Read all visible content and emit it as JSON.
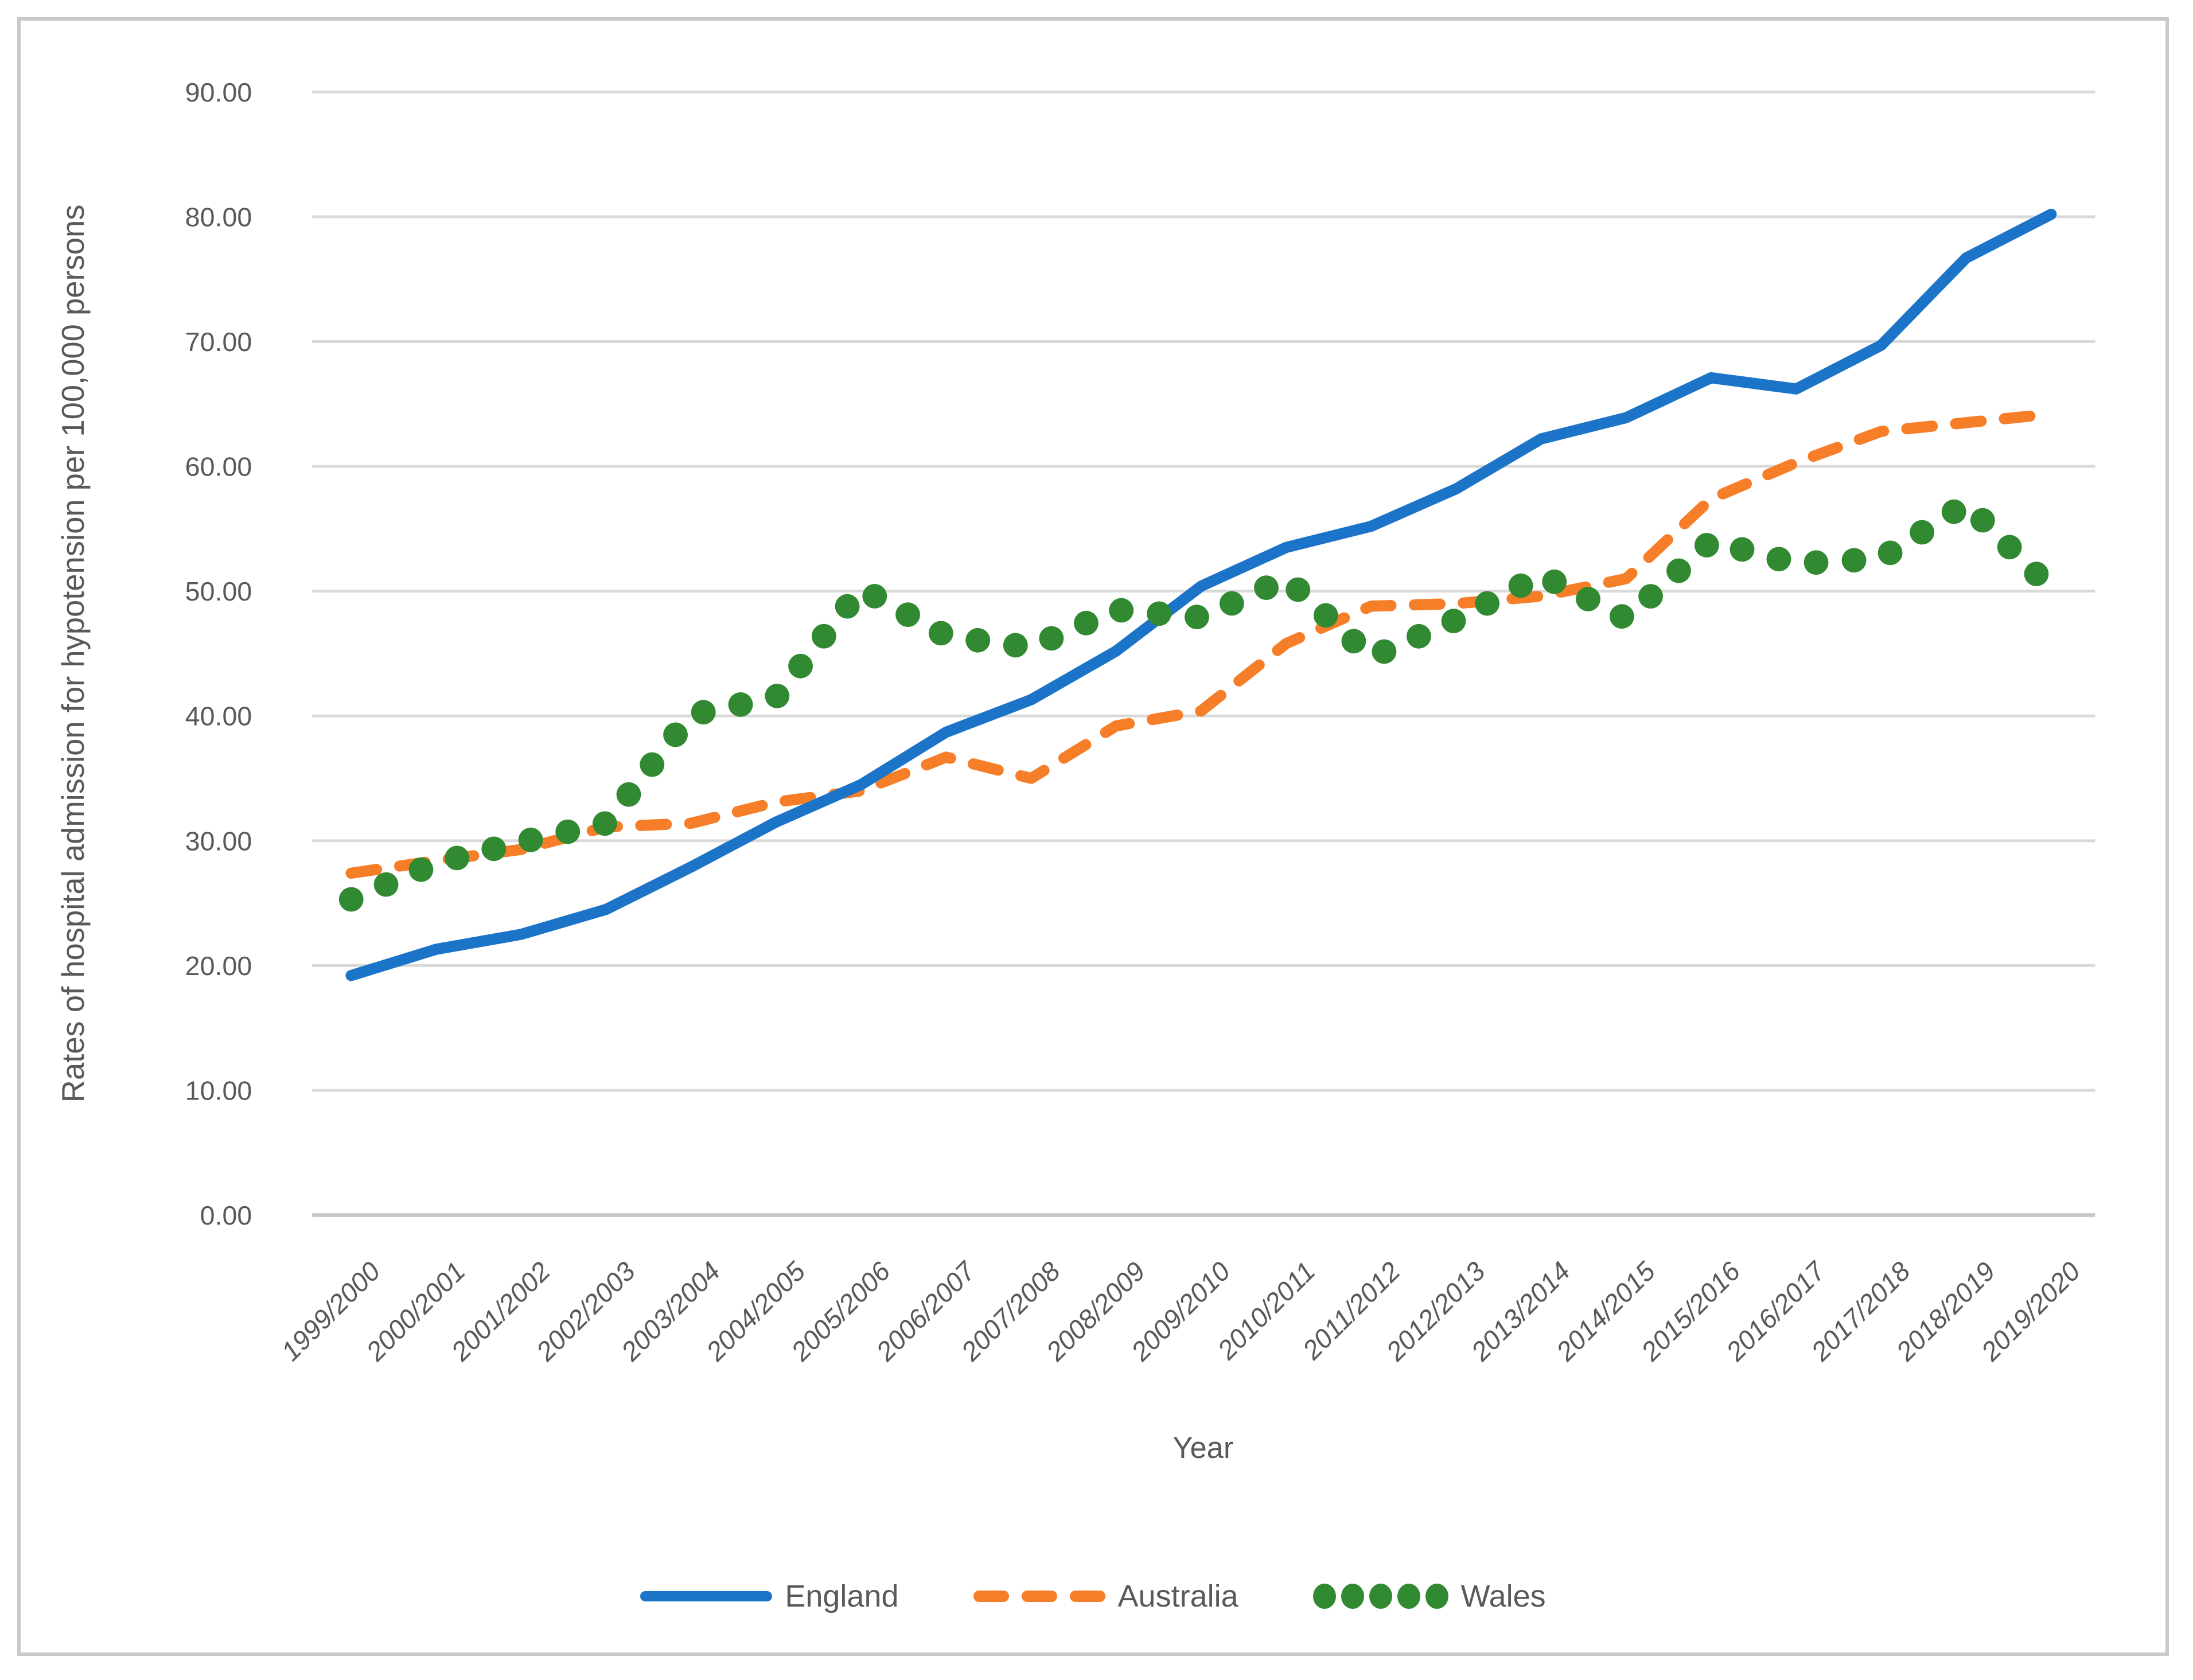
{
  "frame": {
    "border_color": "#c9c9c9",
    "background_color": "#ffffff"
  },
  "chart_data": {
    "type": "line",
    "title": "",
    "xlabel": "Year",
    "ylabel": "Rates of hospital admission for hypotension per 100,000 persons",
    "ylim": [
      0,
      90
    ],
    "ytick_step": 10,
    "ytick_decimals": 2,
    "grid": "horizontal-on",
    "gridline_color": "#d9d9d9",
    "axis_line_color": "#c8c8c8",
    "tick_label_color": "#595959",
    "legend_position": "bottom-center",
    "categories": [
      "1999/2000",
      "2000/2001",
      "2001/2002",
      "2002/2003",
      "2003/2004",
      "2004/2005",
      "2005/2006",
      "2006/2007",
      "2007/2008",
      "2008/2009",
      "2009/2010",
      "2010/2011",
      "2011/2012",
      "2012/2013",
      "2013/2014",
      "2014/2015",
      "2015/2016",
      "2016/2017",
      "2017/2018",
      "2018/2019",
      "2019/2020"
    ],
    "series": [
      {
        "name": "England",
        "color": "#1c74c9",
        "line_style": "solid",
        "values": [
          19.2,
          21.3,
          22.5,
          24.5,
          27.9,
          31.5,
          34.5,
          38.7,
          41.3,
          45.2,
          50.4,
          53.5,
          55.2,
          58.2,
          62.2,
          63.9,
          67.1,
          66.2,
          69.7,
          76.7,
          80.2
        ]
      },
      {
        "name": "Australia",
        "color": "#f67e28",
        "line_style": "dashed",
        "values": [
          27.4,
          28.4,
          29.3,
          31.1,
          31.4,
          33.1,
          34.0,
          36.7,
          35.0,
          39.2,
          40.4,
          45.8,
          48.8,
          49.0,
          49.6,
          51.0,
          57.4,
          60.3,
          62.8,
          63.5,
          64.2
        ]
      },
      {
        "name": "Wales",
        "color": "#318a31",
        "line_style": "dotted",
        "values": [
          25.3,
          28.2,
          29.9,
          31.4,
          40.1,
          41.5,
          50.2,
          46.4,
          45.5,
          48.5,
          47.9,
          51.0,
          44.7,
          47.7,
          51.3,
          47.8,
          54.0,
          52.2,
          52.6,
          57.0,
          50.2
        ]
      }
    ]
  }
}
